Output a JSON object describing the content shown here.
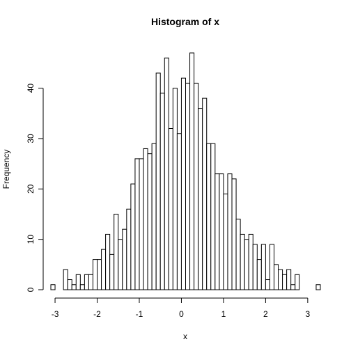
{
  "chart_data": {
    "type": "bar",
    "title": "Histogram of x",
    "xlabel": "x",
    "ylabel": "Frequency",
    "xlim": [
      -3.1,
      3.3
    ],
    "ylim": [
      0,
      47
    ],
    "bin_width": 0.1,
    "x_ticks": [
      -3,
      -2,
      -1,
      0,
      1,
      2,
      3
    ],
    "x_tick_labels": [
      "-3",
      "-2",
      "-1",
      "0",
      "1",
      "2",
      "3"
    ],
    "y_ticks": [
      0,
      10,
      20,
      30,
      40
    ],
    "y_tick_labels": [
      "0",
      "10",
      "20",
      "30",
      "40"
    ],
    "grid": false,
    "legend": "none",
    "bins": [
      {
        "start": -3.1,
        "count": 1
      },
      {
        "start": -3.0,
        "count": 0
      },
      {
        "start": -2.9,
        "count": 0
      },
      {
        "start": -2.8,
        "count": 4
      },
      {
        "start": -2.7,
        "count": 2
      },
      {
        "start": -2.6,
        "count": 1
      },
      {
        "start": -2.5,
        "count": 3
      },
      {
        "start": -2.4,
        "count": 1
      },
      {
        "start": -2.3,
        "count": 3
      },
      {
        "start": -2.2,
        "count": 3
      },
      {
        "start": -2.1,
        "count": 6
      },
      {
        "start": -2.0,
        "count": 6
      },
      {
        "start": -1.9,
        "count": 8
      },
      {
        "start": -1.8,
        "count": 11
      },
      {
        "start": -1.7,
        "count": 7
      },
      {
        "start": -1.6,
        "count": 15
      },
      {
        "start": -1.5,
        "count": 10
      },
      {
        "start": -1.4,
        "count": 12
      },
      {
        "start": -1.3,
        "count": 16
      },
      {
        "start": -1.2,
        "count": 21
      },
      {
        "start": -1.1,
        "count": 26
      },
      {
        "start": -1.0,
        "count": 26
      },
      {
        "start": -0.9,
        "count": 28
      },
      {
        "start": -0.8,
        "count": 27
      },
      {
        "start": -0.7,
        "count": 29
      },
      {
        "start": -0.6,
        "count": 43
      },
      {
        "start": -0.5,
        "count": 39
      },
      {
        "start": -0.4,
        "count": 46
      },
      {
        "start": -0.3,
        "count": 32
      },
      {
        "start": -0.2,
        "count": 40
      },
      {
        "start": -0.1,
        "count": 31
      },
      {
        "start": 0.0,
        "count": 42
      },
      {
        "start": 0.1,
        "count": 41
      },
      {
        "start": 0.2,
        "count": 47
      },
      {
        "start": 0.3,
        "count": 41
      },
      {
        "start": 0.4,
        "count": 36
      },
      {
        "start": 0.5,
        "count": 38
      },
      {
        "start": 0.6,
        "count": 29
      },
      {
        "start": 0.7,
        "count": 29
      },
      {
        "start": 0.8,
        "count": 23
      },
      {
        "start": 0.9,
        "count": 23
      },
      {
        "start": 1.0,
        "count": 19
      },
      {
        "start": 1.1,
        "count": 23
      },
      {
        "start": 1.2,
        "count": 22
      },
      {
        "start": 1.3,
        "count": 14
      },
      {
        "start": 1.4,
        "count": 11
      },
      {
        "start": 1.5,
        "count": 10
      },
      {
        "start": 1.6,
        "count": 11
      },
      {
        "start": 1.7,
        "count": 9
      },
      {
        "start": 1.8,
        "count": 6
      },
      {
        "start": 1.9,
        "count": 9
      },
      {
        "start": 2.0,
        "count": 2
      },
      {
        "start": 2.1,
        "count": 9
      },
      {
        "start": 2.2,
        "count": 5
      },
      {
        "start": 2.3,
        "count": 4
      },
      {
        "start": 2.4,
        "count": 3
      },
      {
        "start": 2.5,
        "count": 4
      },
      {
        "start": 2.6,
        "count": 1
      },
      {
        "start": 2.7,
        "count": 3
      },
      {
        "start": 2.8,
        "count": 0
      },
      {
        "start": 2.9,
        "count": 0
      },
      {
        "start": 3.0,
        "count": 0
      },
      {
        "start": 3.1,
        "count": 0
      },
      {
        "start": 3.2,
        "count": 1
      }
    ]
  }
}
